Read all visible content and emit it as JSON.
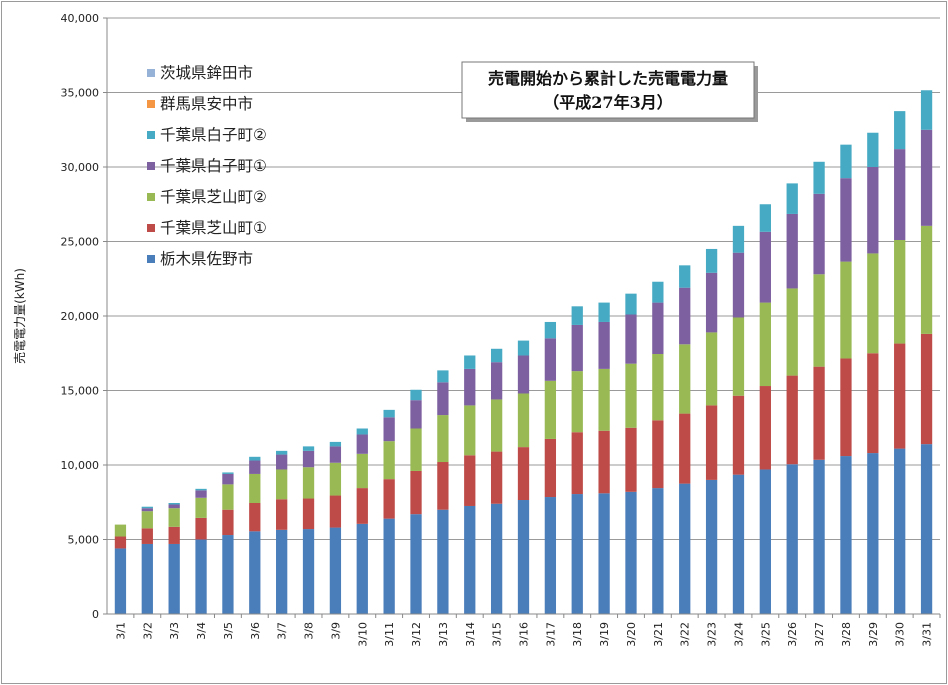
{
  "chart_data": {
    "type": "bar",
    "stacked": true,
    "title": "売電開始から累計した売電電力量",
    "subtitle": "（平成27年3月）",
    "ylabel": "売電電力量(kWh)",
    "xlabel": "",
    "ylim": [
      0,
      40000
    ],
    "yticks": [
      "0",
      "5,000",
      "10,000",
      "15,000",
      "20,000",
      "25,000",
      "30,000",
      "35,000",
      "40,000"
    ],
    "grid": true,
    "legend_position": "top-left",
    "categories": [
      "3/1",
      "3/2",
      "3/3",
      "3/4",
      "3/5",
      "3/6",
      "3/7",
      "3/8",
      "3/9",
      "3/10",
      "3/11",
      "3/12",
      "3/13",
      "3/14",
      "3/15",
      "3/16",
      "3/17",
      "3/18",
      "3/19",
      "3/20",
      "3/21",
      "3/22",
      "3/23",
      "3/24",
      "3/25",
      "3/26",
      "3/27",
      "3/28",
      "3/29",
      "3/30",
      "3/31"
    ],
    "series": [
      {
        "name": "栃木県佐野市",
        "color": "#4a7ebb",
        "values": [
          4400,
          4700,
          4700,
          5000,
          5300,
          5550,
          5650,
          5700,
          5800,
          6050,
          6400,
          6700,
          7000,
          7250,
          7400,
          7650,
          7850,
          8050,
          8100,
          8200,
          8450,
          8750,
          9000,
          9350,
          9700,
          10050,
          10350,
          10600,
          10800,
          11100,
          11400
        ]
      },
      {
        "name": "千葉県芝山町①",
        "color": "#be4b48",
        "values": [
          800,
          1050,
          1150,
          1450,
          1700,
          1900,
          2050,
          2050,
          2150,
          2400,
          2650,
          2900,
          3200,
          3400,
          3500,
          3550,
          3900,
          4150,
          4200,
          4300,
          4550,
          4700,
          5000,
          5300,
          5600,
          5950,
          6250,
          6550,
          6700,
          7050,
          7400
        ]
      },
      {
        "name": "千葉県芝山町②",
        "color": "#98b954",
        "values": [
          800,
          1150,
          1250,
          1350,
          1700,
          1950,
          2000,
          2100,
          2200,
          2300,
          2550,
          2850,
          3150,
          3350,
          3500,
          3600,
          3900,
          4100,
          4150,
          4300,
          4450,
          4650,
          4900,
          5250,
          5600,
          5850,
          6200,
          6500,
          6700,
          6950,
          7250
        ]
      },
      {
        "name": "千葉県白子町①",
        "color": "#7d60a0",
        "values": [
          0,
          200,
          250,
          500,
          700,
          900,
          1000,
          1100,
          1100,
          1300,
          1600,
          1900,
          2200,
          2450,
          2500,
          2550,
          2850,
          3100,
          3150,
          3300,
          3450,
          3800,
          4000,
          4350,
          4750,
          5000,
          5400,
          5600,
          5800,
          6100,
          6450
        ]
      },
      {
        "name": "千葉県白子町②",
        "color": "#46aac4",
        "values": [
          0,
          100,
          100,
          100,
          100,
          250,
          250,
          300,
          300,
          400,
          500,
          700,
          800,
          900,
          900,
          1000,
          1100,
          1250,
          1300,
          1400,
          1400,
          1500,
          1600,
          1800,
          1850,
          2050,
          2150,
          2250,
          2300,
          2550,
          2650
        ]
      },
      {
        "name": "群馬県安中市",
        "color": "#f59645",
        "values": [
          0,
          0,
          0,
          0,
          0,
          0,
          0,
          0,
          0,
          0,
          0,
          0,
          0,
          0,
          0,
          0,
          0,
          0,
          0,
          0,
          0,
          0,
          0,
          0,
          0,
          0,
          0,
          0,
          0,
          0,
          0
        ]
      },
      {
        "name": "茨城県鉾田市",
        "color": "#96b3d7",
        "values": [
          0,
          0,
          0,
          0,
          0,
          0,
          0,
          0,
          0,
          0,
          0,
          0,
          0,
          0,
          0,
          0,
          0,
          0,
          0,
          0,
          0,
          0,
          0,
          0,
          0,
          0,
          0,
          0,
          0,
          0,
          0
        ]
      }
    ],
    "legend_order": [
      "茨城県鉾田市",
      "群馬県安中市",
      "千葉県白子町②",
      "千葉県白子町①",
      "千葉県芝山町②",
      "千葉県芝山町①",
      "栃木県佐野市"
    ]
  }
}
